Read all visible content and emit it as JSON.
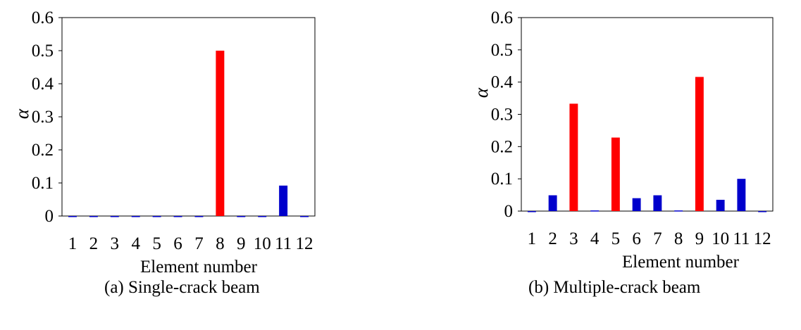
{
  "chart_data": [
    {
      "type": "bar",
      "categories": [
        "1",
        "2",
        "3",
        "4",
        "5",
        "6",
        "7",
        "8",
        "9",
        "10",
        "11",
        "12"
      ],
      "values": [
        0,
        0,
        0,
        -0.002,
        0,
        0,
        0,
        0.5,
        0,
        0,
        0.092,
        0
      ],
      "bar_colors": [
        "#0000cc",
        "#0000cc",
        "#0000cc",
        "#0000cc",
        "#0000cc",
        "#0000cc",
        "#0000cc",
        "#ff0000",
        "#0000cc",
        "#0000cc",
        "#0000cc",
        "#0000cc"
      ],
      "xlabel": "Element number",
      "ylabel": "α",
      "ylim": [
        0,
        0.6
      ],
      "yticks": [
        "0",
        "0.1",
        "0.2",
        "0.3",
        "0.4",
        "0.5",
        "0.6"
      ],
      "caption": "(a) Single-crack beam",
      "grid": false
    },
    {
      "type": "bar",
      "categories": [
        "1",
        "2",
        "3",
        "4",
        "5",
        "6",
        "7",
        "8",
        "9",
        "10",
        "11",
        "12"
      ],
      "values": [
        0,
        0.049,
        0.333,
        0.002,
        0.228,
        0.04,
        0.049,
        0.002,
        0.416,
        0.035,
        0.1,
        0
      ],
      "bar_colors": [
        "#0000cc",
        "#0000cc",
        "#ff0000",
        "#0000cc",
        "#ff0000",
        "#0000cc",
        "#0000cc",
        "#0000cc",
        "#ff0000",
        "#0000cc",
        "#0000cc",
        "#0000cc"
      ],
      "xlabel": "Element number",
      "ylabel": "α",
      "ylim": [
        0,
        0.6
      ],
      "yticks": [
        "0",
        "0.1",
        "0.2",
        "0.3",
        "0.4",
        "0.5",
        "0.6"
      ],
      "caption": "(b) Multiple-crack beam",
      "grid": false
    }
  ]
}
